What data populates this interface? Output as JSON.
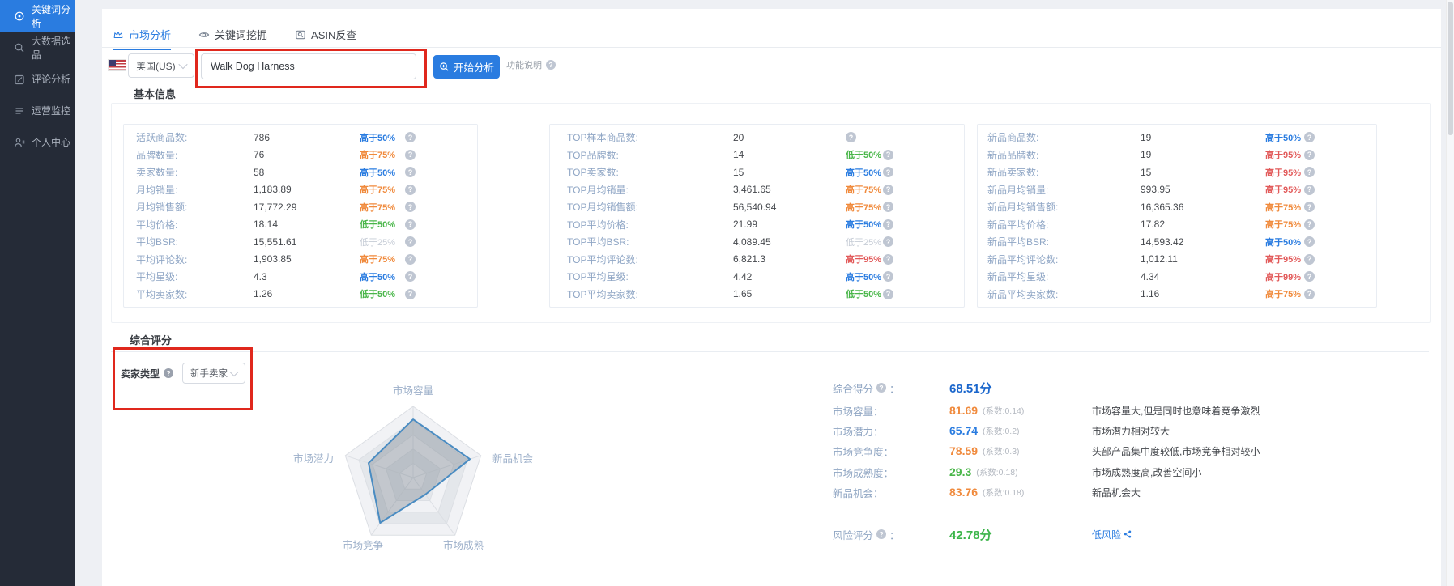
{
  "colors": {
    "accent_blue": "#2a7ce0",
    "annotation_red": "#e0281d",
    "badge_blue": "#2a7ce0",
    "badge_orange": "#f08a3c",
    "badge_green": "#49b649",
    "badge_red": "#e25a5a",
    "badge_gray": "#c6ccd6",
    "score_total_blue": "#1a66cc",
    "risk_green": "#3cb54a"
  },
  "sidebar": {
    "items": [
      {
        "label": "关键词分析",
        "icon": "target-icon",
        "active": true
      },
      {
        "label": "大数据选品",
        "icon": "search-icon",
        "active": false
      },
      {
        "label": "评论分析",
        "icon": "edit-icon",
        "active": false
      },
      {
        "label": "运营监控",
        "icon": "monitor-icon",
        "active": false
      },
      {
        "label": "个人中心",
        "icon": "user-icon",
        "active": false
      }
    ]
  },
  "tabs": [
    {
      "label": "市场分析",
      "icon": "crown-icon",
      "active": true
    },
    {
      "label": "关键词挖掘",
      "icon": "eye-icon",
      "active": false
    },
    {
      "label": "ASIN反查",
      "icon": "asin-search-icon",
      "active": false
    }
  ],
  "toolbar": {
    "country": "美国(US)",
    "keyword": "Walk Dog Harness",
    "analyze_label": "开始分析",
    "help_label": "功能说明"
  },
  "sections": {
    "basic_info": "基本信息",
    "overall": "综合评分"
  },
  "panels": [
    {
      "name": "overall-stats",
      "rows": [
        {
          "label": "活跃商品数:",
          "value": "786",
          "badge": "高于50%",
          "tone": "blue"
        },
        {
          "label": "品牌数量:",
          "value": "76",
          "badge": "高于75%",
          "tone": "orange"
        },
        {
          "label": "卖家数量:",
          "value": "58",
          "badge": "高于50%",
          "tone": "blue"
        },
        {
          "label": "月均销量:",
          "value": "1,183.89",
          "badge": "高于75%",
          "tone": "orange"
        },
        {
          "label": "月均销售额:",
          "value": "17,772.29",
          "badge": "高于75%",
          "tone": "orange"
        },
        {
          "label": "平均价格:",
          "value": "18.14",
          "badge": "低于50%",
          "tone": "green"
        },
        {
          "label": "平均BSR:",
          "value": "15,551.61",
          "badge": "低于25%",
          "tone": "gray"
        },
        {
          "label": "平均评论数:",
          "value": "1,903.85",
          "badge": "高于75%",
          "tone": "orange"
        },
        {
          "label": "平均星级:",
          "value": "4.3",
          "badge": "高于50%",
          "tone": "blue"
        },
        {
          "label": "平均卖家数:",
          "value": "1.26",
          "badge": "低于50%",
          "tone": "green"
        }
      ]
    },
    {
      "name": "top-stats",
      "rows": [
        {
          "label": "TOP样本商品数:",
          "value": "20",
          "badge": "",
          "tone": ""
        },
        {
          "label": "TOP品牌数:",
          "value": "14",
          "badge": "低于50%",
          "tone": "green"
        },
        {
          "label": "TOP卖家数:",
          "value": "15",
          "badge": "高于50%",
          "tone": "blue"
        },
        {
          "label": "TOP月均销量:",
          "value": "3,461.65",
          "badge": "高于75%",
          "tone": "orange"
        },
        {
          "label": "TOP月均销售额:",
          "value": "56,540.94",
          "badge": "高于75%",
          "tone": "orange"
        },
        {
          "label": "TOP平均价格:",
          "value": "21.99",
          "badge": "高于50%",
          "tone": "blue"
        },
        {
          "label": "TOP平均BSR:",
          "value": "4,089.45",
          "badge": "低于25%",
          "tone": "gray"
        },
        {
          "label": "TOP平均评论数:",
          "value": "6,821.3",
          "badge": "高于95%",
          "tone": "red"
        },
        {
          "label": "TOP平均星级:",
          "value": "4.42",
          "badge": "高于50%",
          "tone": "blue"
        },
        {
          "label": "TOP平均卖家数:",
          "value": "1.65",
          "badge": "低于50%",
          "tone": "green"
        }
      ]
    },
    {
      "name": "new-product-stats",
      "rows": [
        {
          "label": "新品商品数:",
          "value": "19",
          "badge": "高于50%",
          "tone": "blue"
        },
        {
          "label": "新品品牌数:",
          "value": "19",
          "badge": "高于95%",
          "tone": "red"
        },
        {
          "label": "新品卖家数:",
          "value": "15",
          "badge": "高于95%",
          "tone": "red"
        },
        {
          "label": "新品月均销量:",
          "value": "993.95",
          "badge": "高于95%",
          "tone": "red"
        },
        {
          "label": "新品月均销售额:",
          "value": "16,365.36",
          "badge": "高于75%",
          "tone": "orange"
        },
        {
          "label": "新品平均价格:",
          "value": "17.82",
          "badge": "高于75%",
          "tone": "orange"
        },
        {
          "label": "新品平均BSR:",
          "value": "14,593.42",
          "badge": "高于50%",
          "tone": "blue"
        },
        {
          "label": "新品平均评论数:",
          "value": "1,012.11",
          "badge": "高于95%",
          "tone": "red"
        },
        {
          "label": "新品平均星级:",
          "value": "4.34",
          "badge": "高于99%",
          "tone": "red"
        },
        {
          "label": "新品平均卖家数:",
          "value": "1.16",
          "badge": "高于75%",
          "tone": "orange"
        }
      ]
    }
  ],
  "seller_type": {
    "label": "卖家类型",
    "value": "新手卖家"
  },
  "chart_data": {
    "type": "radar",
    "categories": [
      "市场容量",
      "新品机会",
      "市场成熟",
      "市场竞争",
      "市场潜力"
    ],
    "values": [
      81.69,
      83.76,
      29.3,
      78.59,
      65.74
    ],
    "max": 100,
    "levels": 5,
    "grid": "pentagon-split-area",
    "legend": "none"
  },
  "scores": {
    "total": {
      "label": "综合得分",
      "value": "68.51分"
    },
    "items": [
      {
        "label": "市场容量",
        "value": "81.69",
        "tone": "orange",
        "coef": "(系数:0.14)",
        "desc": "市场容量大,但是同时也意味着竞争激烈"
      },
      {
        "label": "市场潜力",
        "value": "65.74",
        "tone": "blue",
        "coef": "(系数:0.2)",
        "desc": "市场潜力相对较大"
      },
      {
        "label": "市场竞争度",
        "value": "78.59",
        "tone": "orange",
        "coef": "(系数:0.3)",
        "desc": "头部产品集中度较低,市场竞争相对较小"
      },
      {
        "label": "市场成熟度",
        "value": "29.3",
        "tone": "green",
        "coef": "(系数:0.18)",
        "desc": "市场成熟度高,改善空间小"
      },
      {
        "label": "新品机会",
        "value": "83.76",
        "tone": "orange",
        "coef": "(系数:0.18)",
        "desc": "新品机会大"
      }
    ],
    "risk": {
      "label": "风险评分",
      "value": "42.78分",
      "link": "低风险"
    }
  }
}
